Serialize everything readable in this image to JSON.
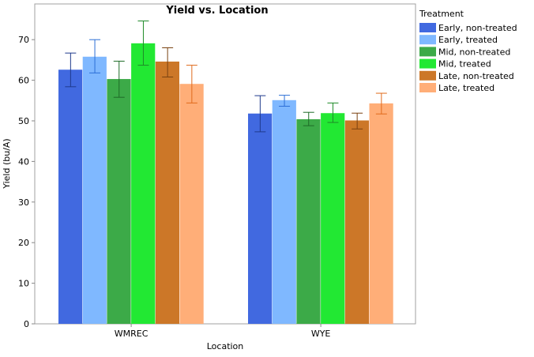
{
  "chart_data": {
    "type": "bar",
    "title": "Yield vs. Location",
    "xlabel": "Location",
    "ylabel": "Yield (bu/A)",
    "ylim": [
      0,
      76
    ],
    "yticks": [
      0,
      10,
      20,
      30,
      40,
      50,
      60,
      70
    ],
    "categories": [
      "WMREC",
      "WYE"
    ],
    "legend_title": "Treatment",
    "legend_position": "right",
    "grid": false,
    "series": [
      {
        "name": "Early, non-treated",
        "color": "#4169E0",
        "err_color": "#1F3A8C",
        "values": [
          62.6,
          51.8
        ],
        "err_low": [
          58.4,
          47.3
        ],
        "err_high": [
          66.7,
          56.2
        ]
      },
      {
        "name": "Early, treated",
        "color": "#7FB8FF",
        "err_color": "#2C6FD6",
        "values": [
          65.8,
          55.1
        ],
        "err_low": [
          61.8,
          53.6
        ],
        "err_high": [
          70.0,
          56.3
        ]
      },
      {
        "name": "Mid, non-treated",
        "color": "#3CAA48",
        "err_color": "#1E6B27",
        "values": [
          60.3,
          50.4
        ],
        "err_low": [
          55.8,
          48.8
        ],
        "err_high": [
          64.7,
          52.1
        ]
      },
      {
        "name": "Mid, treated",
        "color": "#22E833",
        "err_color": "#1E8A28",
        "values": [
          69.1,
          51.9
        ],
        "err_low": [
          63.7,
          49.6
        ],
        "err_high": [
          74.6,
          54.4
        ]
      },
      {
        "name": "Late, non-treated",
        "color": "#CC7728",
        "err_color": "#7A4210",
        "values": [
          64.6,
          50.1
        ],
        "err_low": [
          60.8,
          48.0
        ],
        "err_high": [
          68.0,
          51.9
        ]
      },
      {
        "name": "Late, treated",
        "color": "#FFAE78",
        "err_color": "#E06A1C",
        "values": [
          59.1,
          54.3
        ],
        "err_low": [
          54.4,
          51.7
        ],
        "err_high": [
          63.7,
          56.8
        ]
      }
    ]
  }
}
